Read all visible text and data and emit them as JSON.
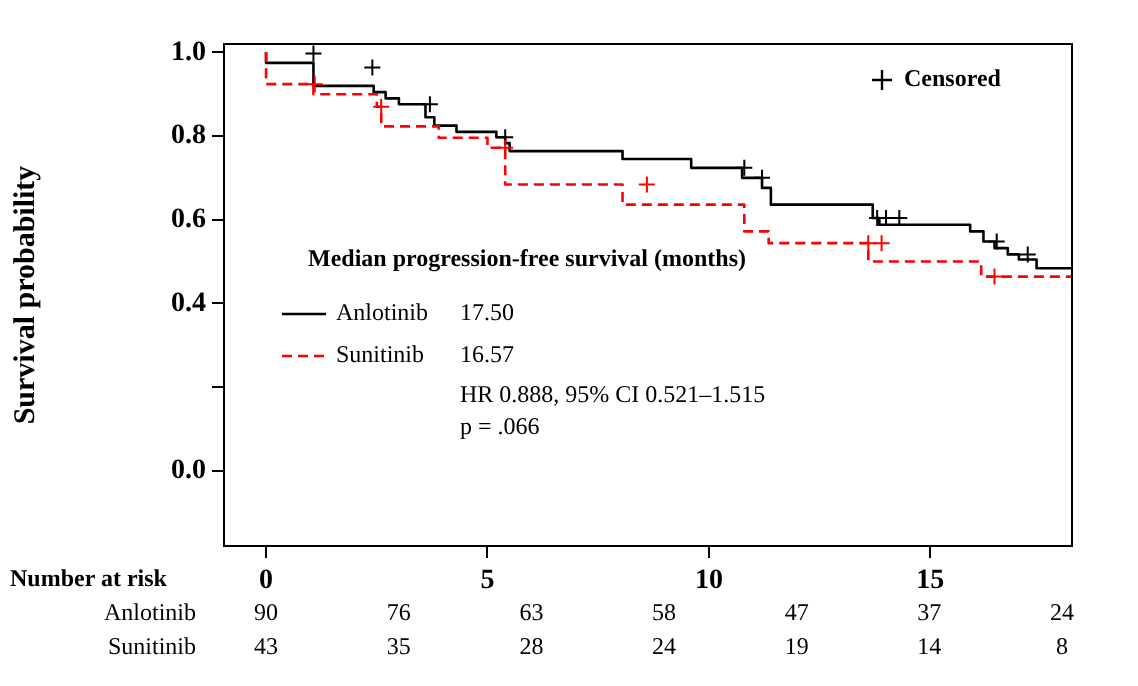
{
  "chart_data": {
    "type": "step",
    "ylabel": "Survival probability",
    "legend_title": "Median progression-free survival (months)",
    "legend": "left",
    "grid": false,
    "line_style": "solid",
    "marker": "none",
    "xlim": [
      -0.95,
      18.2
    ],
    "xticks": [
      0,
      5,
      10,
      15
    ],
    "ylim": [
      -0.18,
      1.02
    ],
    "yticks": [
      {
        "value": 0,
        "label": "0.0"
      },
      {
        "value": 0.2,
        "label": null
      },
      0.4,
      0.6,
      0.8,
      {
        "value": 1,
        "label": "1.0"
      }
    ],
    "series": [
      {
        "name": "Anlotinib",
        "color": "#000000",
        "x": [
          0,
          1.07,
          2.43,
          2.7,
          3.0,
          3.6,
          3.8,
          4.3,
          5.2,
          5.4,
          5.5,
          8.05,
          9.6,
          10.75,
          11.2,
          11.4,
          13.7,
          13.85,
          15.9,
          16.2,
          16.45,
          16.75,
          17.0,
          17.4,
          17.9,
          18.2
        ],
        "values": [
          1.0,
          0.975,
          0.92,
          0.905,
          0.89,
          0.876,
          0.845,
          0.825,
          0.81,
          0.797,
          0.783,
          0.764,
          0.745,
          0.724,
          0.7,
          0.676,
          0.636,
          0.604,
          0.588,
          0.572,
          0.548,
          0.532,
          0.517,
          0.505,
          0.484,
          0.484
        ]
      },
      {
        "name": "Sunitinib",
        "color": "#ff0000",
        "line_style": "dashed",
        "x": [
          0,
          1.07,
          2.5,
          2.6,
          3.9,
          5.0,
          5.4,
          8.05,
          10.8,
          11.35,
          13.6,
          16.15,
          16.45,
          18.2
        ],
        "values": [
          1.0,
          0.924,
          0.9,
          0.87,
          0.823,
          0.796,
          0.772,
          0.684,
          0.636,
          0.572,
          0.544,
          0.5,
          0.464,
          0.464
        ]
      },
      {
        "name": "Censored",
        "type": "scatter",
        "marker": "cross",
        "color": "#000000",
        "colors": [
          "#000000",
          "#000000",
          "#000000",
          "#000000",
          "#000000",
          "#000000",
          "#000000",
          "#000000",
          "#000000",
          "#000000",
          "#000000",
          "#ff0000",
          "#ff0000",
          "#ff0000",
          "#ff0000",
          "#ff0000",
          "#ff0000",
          "#ff0000"
        ],
        "x": [
          1.07,
          2.4,
          3.7,
          5.4,
          10.8,
          11.2,
          13.8,
          14.0,
          14.3,
          16.5,
          17.2,
          1.1,
          2.6,
          5.4,
          8.6,
          13.6,
          13.9,
          16.45
        ],
        "values": [
          0.997,
          0.964,
          0.876,
          0.797,
          0.724,
          0.7,
          0.604,
          0.604,
          0.604,
          0.548,
          0.517,
          0.924,
          0.87,
          0.772,
          0.684,
          0.544,
          0.544,
          0.464
        ]
      }
    ],
    "annotations": [
      "17.50",
      "16.57",
      "HR 0.888, 95% CI 0.521–1.515",
      "p = .066",
      "Number at risk",
      "Anlotinib",
      "90",
      "76",
      "63",
      "58",
      "47",
      "37",
      "24",
      "Sunitinib",
      "43",
      "35",
      "28",
      "24",
      "19",
      "14",
      "8"
    ]
  }
}
